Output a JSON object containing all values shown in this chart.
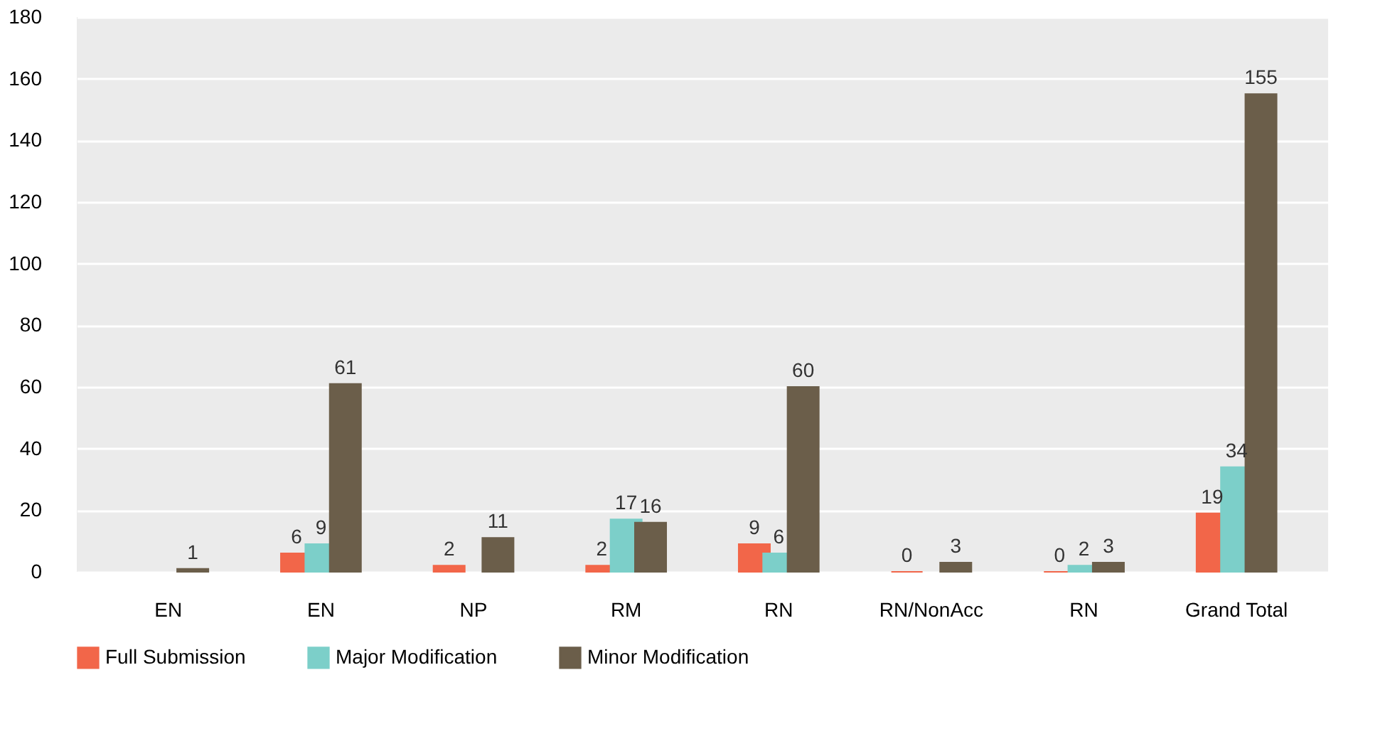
{
  "chart_data": {
    "type": "bar",
    "categories": [
      "EN",
      "EN",
      "NP",
      "RM",
      "RN",
      "RN/NonAcc",
      "RN",
      "Grand Total"
    ],
    "series": [
      {
        "name": "Full Submission",
        "color": "#f26649",
        "values": [
          null,
          6,
          2,
          2,
          9,
          0,
          0,
          19
        ]
      },
      {
        "name": "Major Modification",
        "color": "#7ccfc9",
        "values": [
          null,
          9,
          null,
          17,
          6,
          null,
          2,
          34
        ]
      },
      {
        "name": "Minor Modification",
        "color": "#6b5e4a",
        "values": [
          1,
          61,
          11,
          16,
          60,
          3,
          3,
          155
        ]
      }
    ],
    "ylim": [
      0,
      180
    ],
    "yticks": [
      0,
      20,
      40,
      60,
      80,
      100,
      120,
      140,
      160,
      180
    ],
    "grid": "y",
    "legend": "bottom",
    "data_labels": true
  }
}
